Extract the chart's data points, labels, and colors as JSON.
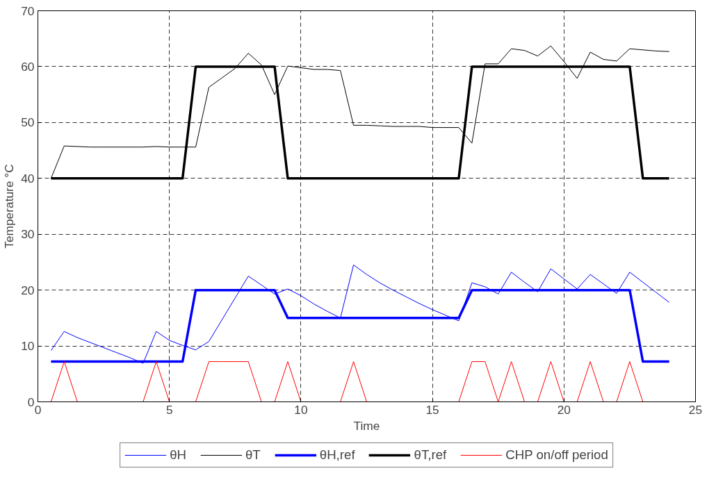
{
  "chart_data": {
    "type": "line",
    "xlabel": "Time",
    "ylabel": "Temperature °C",
    "xlim": [
      0,
      25
    ],
    "ylim": [
      0,
      70
    ],
    "xticks": [
      0,
      5,
      10,
      15,
      20,
      25
    ],
    "yticks": [
      0,
      10,
      20,
      30,
      40,
      50,
      60,
      70
    ],
    "grid": true,
    "legend": "bottom",
    "line_style": "solid",
    "marker": "none",
    "x": [
      0.5,
      1,
      1.5,
      2,
      2.5,
      3,
      3.5,
      4,
      4.5,
      5,
      5.5,
      6,
      6.5,
      7,
      7.5,
      8,
      8.5,
      9,
      9.5,
      10,
      10.5,
      11,
      11.5,
      12,
      12.5,
      13,
      13.5,
      14,
      14.5,
      15,
      15.5,
      16,
      16.5,
      17,
      17.5,
      18,
      18.5,
      19,
      19.5,
      20,
      20.5,
      21,
      21.5,
      22,
      22.5,
      23,
      23.5,
      24
    ],
    "series": [
      {
        "name": "θH",
        "color": "#0000ff",
        "values": [
          9.2,
          12.6,
          11.5,
          10.6,
          9.7,
          8.8,
          7.9,
          6.9,
          12.6,
          11.0,
          10.1,
          9.3,
          10.8,
          14.7,
          18.6,
          22.5,
          20.9,
          19.3,
          20.2,
          19.0,
          17.5,
          16.2,
          15.0,
          24.5,
          22.8,
          21.3,
          20.0,
          18.8,
          17.6,
          16.5,
          15.5,
          14.5,
          21.3,
          20.6,
          19.3,
          23.2,
          21.4,
          19.7,
          23.8,
          22.0,
          20.2,
          22.8,
          21.1,
          19.4,
          23.2,
          21.4,
          19.6,
          17.8
        ]
      },
      {
        "name": "θT",
        "color": "#000000",
        "values": [
          40,
          45.8,
          45.7,
          45.6,
          45.6,
          45.6,
          45.6,
          45.6,
          45.7,
          45.6,
          45.6,
          45.6,
          56.3,
          58.0,
          59.7,
          62.4,
          60.3,
          55.0,
          60.1,
          59.8,
          59.5,
          59.5,
          59.3,
          49.5,
          49.5,
          49.4,
          49.3,
          49.3,
          49.3,
          49.1,
          49.1,
          49.1,
          46.3,
          60.5,
          60.5,
          63.2,
          62.9,
          61.9,
          63.7,
          60.9,
          57.9,
          62.6,
          61.3,
          61.0,
          63.2,
          63.0,
          62.8,
          62.7
        ]
      },
      {
        "name": "θH,ref",
        "color": "#0000ff",
        "x": [
          0.5,
          5.5,
          6,
          9,
          9.5,
          16,
          16.5,
          22.5,
          23,
          24
        ],
        "values": [
          7.2,
          7.2,
          20,
          20,
          15,
          15,
          20,
          20,
          7.2,
          7.2
        ]
      },
      {
        "name": "θT,ref",
        "color": "#000000",
        "x": [
          0.5,
          5.5,
          6,
          9,
          9.5,
          16,
          16.5,
          22.5,
          23,
          24
        ],
        "values": [
          40,
          40,
          60,
          60,
          40,
          40,
          60,
          60,
          40,
          40
        ]
      },
      {
        "name": "CHP on/off period",
        "color": "#ff0000",
        "values": [
          0,
          7.2,
          0,
          0,
          0,
          0,
          0,
          0,
          7.2,
          0,
          0,
          0,
          7.2,
          7.2,
          7.2,
          7.2,
          0,
          0,
          7.2,
          0,
          0,
          0,
          0,
          7.2,
          0,
          0,
          0,
          0,
          0,
          0,
          0,
          0,
          7.2,
          7.2,
          0,
          7.2,
          0,
          0,
          7.2,
          0,
          0,
          7.2,
          0,
          0,
          7.2,
          0,
          0,
          0
        ]
      }
    ]
  }
}
